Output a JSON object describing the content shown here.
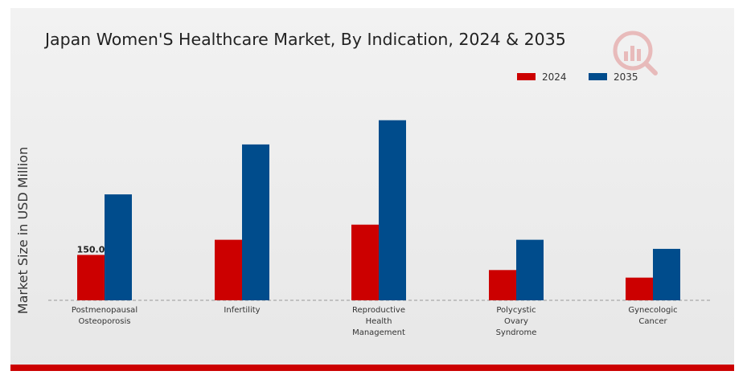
{
  "colors": {
    "series_2024": "#cc0000",
    "series_2035": "#004c8c",
    "background": "#efefef",
    "accent_band": "#cc0000"
  },
  "watermark_icon": "market-research-logo-icon",
  "chart_data": {
    "type": "bar",
    "title": "Japan Women'S Healthcare Market, By Indication, 2024 & 2035",
    "xlabel": "",
    "ylabel": "Market Size in USD Million",
    "categories": [
      [
        "Postmenopausal",
        "Osteoporosis"
      ],
      [
        "Infertility"
      ],
      [
        "Reproductive",
        "Health",
        "Management"
      ],
      [
        "Polycystic",
        "Ovary",
        "Syndrome"
      ],
      [
        "Gynecologic",
        "Cancer"
      ]
    ],
    "series": [
      {
        "name": "2024",
        "values": [
          150.0,
          200,
          250,
          100,
          75
        ]
      },
      {
        "name": "2035",
        "values": [
          350,
          515,
          595,
          200,
          170
        ]
      }
    ],
    "data_labels": [
      {
        "series": 0,
        "index": 0,
        "text": "150.0"
      }
    ],
    "ylim": [
      0,
      650
    ],
    "grid": false,
    "legend": "top-right"
  }
}
